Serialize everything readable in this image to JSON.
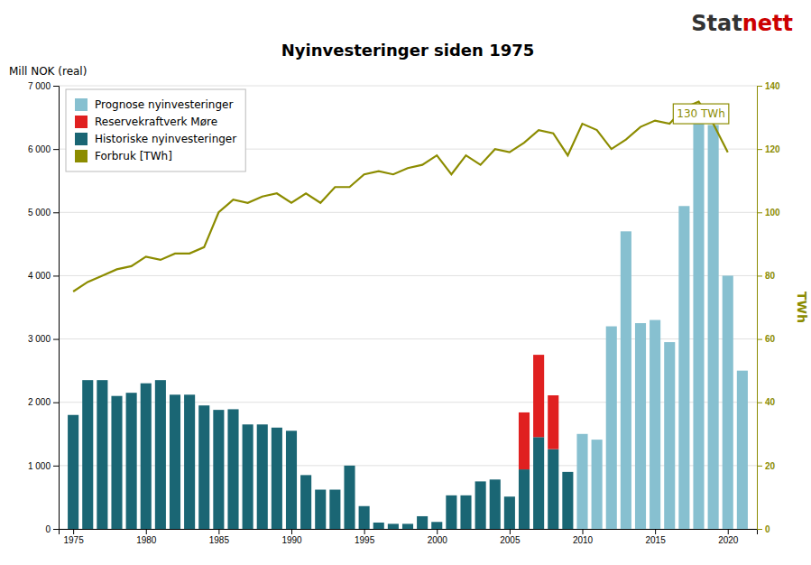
{
  "chart_data": {
    "type": "bar",
    "title": "Nyinvesteringer siden 1975",
    "ylabel": "Mill NOK (real)",
    "y2label": "TWh",
    "xlim": [
      1974.0,
      2022.0
    ],
    "ylim": [
      0,
      7000
    ],
    "y2lim": [
      0,
      140
    ],
    "xticks": [
      1975,
      1980,
      1985,
      1990,
      1995,
      2000,
      2005,
      2010,
      2015,
      2020
    ],
    "yticks": [
      0,
      {
        "value": 1000,
        "label": "1 000"
      },
      {
        "value": 2000,
        "label": "2 000"
      },
      {
        "value": 3000,
        "label": "3 000"
      },
      {
        "value": 4000,
        "label": "4 000"
      },
      {
        "value": 5000,
        "label": "5 000"
      },
      {
        "value": 6000,
        "label": "6 000"
      },
      {
        "value": 7000,
        "label": "7 000"
      }
    ],
    "y2ticks": [
      0,
      20,
      40,
      60,
      80,
      100,
      120,
      140
    ],
    "grid": true,
    "legend": "upper left",
    "stacked": true,
    "series": [
      {
        "name": "Historiske nyinvesteringer",
        "color": "#1a6674",
        "type": "bar",
        "x": [
          1975,
          1976,
          1977,
          1978,
          1979,
          1980,
          1981,
          1982,
          1983,
          1984,
          1985,
          1986,
          1987,
          1988,
          1989,
          1990,
          1991,
          1992,
          1993,
          1994,
          1995,
          1996,
          1997,
          1998,
          1999,
          2000,
          2001,
          2002,
          2003,
          2004,
          2005,
          2006,
          2007,
          2008,
          2009
        ],
        "values": [
          1800,
          2350,
          2350,
          2100,
          2150,
          2300,
          2350,
          2120,
          2120,
          1950,
          1880,
          1890,
          1650,
          1650,
          1600,
          1550,
          850,
          620,
          620,
          1000,
          360,
          100,
          80,
          80,
          200,
          110,
          530,
          530,
          750,
          780,
          510,
          940,
          1450,
          1260,
          900
        ]
      },
      {
        "name": "Reservekraftverk Møre",
        "color": "#e02020",
        "type": "bar",
        "x": [
          2006,
          2007,
          2008
        ],
        "values": [
          900,
          1300,
          850
        ]
      },
      {
        "name": "Prognose nyinvesteringer",
        "color": "#87c0d0",
        "type": "bar",
        "x": [
          2010,
          2011,
          2012,
          2013,
          2014,
          2015,
          2016,
          2017,
          2018,
          2019,
          2020,
          2021
        ],
        "values": [
          1500,
          1410,
          3200,
          4700,
          3250,
          3300,
          2950,
          5100,
          6400,
          6380,
          4000,
          2500
        ]
      },
      {
        "name": "Forbruk [TWh]",
        "color": "#8c8c00",
        "type": "line",
        "axis": "y2",
        "x": [
          1975,
          1976,
          1977,
          1978,
          1979,
          1980,
          1981,
          1982,
          1983,
          1984,
          1985,
          1986,
          1987,
          1988,
          1989,
          1990,
          1991,
          1992,
          1993,
          1994,
          1995,
          1996,
          1997,
          1998,
          1999,
          2000,
          2001,
          2002,
          2003,
          2004,
          2005,
          2006,
          2007,
          2008,
          2009,
          2010,
          2011,
          2012,
          2013,
          2014,
          2015,
          2016,
          2017,
          2018,
          2019,
          2020
        ],
        "values": [
          75,
          78,
          80,
          82,
          83,
          86,
          85,
          87,
          87,
          89,
          100,
          104,
          103,
          105,
          106,
          103,
          106,
          103,
          108,
          108,
          112,
          113,
          112,
          114,
          115,
          118,
          112,
          118,
          115,
          120,
          119,
          122,
          126,
          125,
          118,
          128,
          126,
          120,
          123,
          127,
          129,
          128,
          133,
          135,
          128,
          119
        ]
      }
    ],
    "annotations": [
      {
        "text": "130 TWh",
        "x": 2016.5,
        "y": 130,
        "axis": "y2"
      }
    ],
    "logo": [
      {
        "text": "Stat",
        "color": "#333333"
      },
      {
        "text": "nett",
        "color": "#cc0000"
      }
    ]
  }
}
